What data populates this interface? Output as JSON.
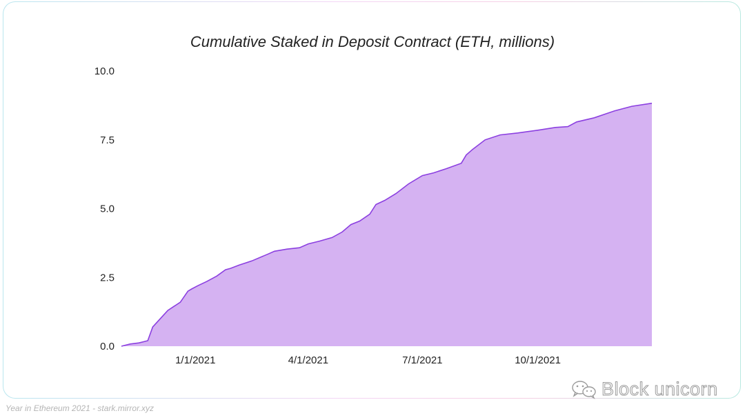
{
  "chart_data": {
    "type": "area",
    "title": "Cumulative Staked in Deposit Contract (ETH, millions)",
    "xlabel": "",
    "ylabel": "",
    "ylim": [
      0,
      10
    ],
    "yticks": [
      "0.0",
      "2.5",
      "5.0",
      "7.5",
      "10.0"
    ],
    "xticks": [
      "1/1/2021",
      "4/1/2021",
      "7/1/2021",
      "10/1/2021"
    ],
    "xlim": [
      "2020-11-03",
      "2021-12-31"
    ],
    "grid": false,
    "legend": "none",
    "fill_color": "#d5b2f2",
    "line_color": "#8b3fe0",
    "x": [
      "2020-11-03",
      "2020-11-10",
      "2020-11-17",
      "2020-11-24",
      "2020-11-28",
      "2020-12-01",
      "2020-12-05",
      "2020-12-10",
      "2020-12-15",
      "2020-12-20",
      "2020-12-26",
      "2020-12-29",
      "2021-01-03",
      "2021-01-10",
      "2021-01-18",
      "2021-01-25",
      "2021-01-29",
      "2021-02-05",
      "2021-02-15",
      "2021-02-28",
      "2021-03-05",
      "2021-03-15",
      "2021-03-25",
      "2021-04-01",
      "2021-04-10",
      "2021-04-20",
      "2021-04-28",
      "2021-05-05",
      "2021-05-12",
      "2021-05-20",
      "2021-05-25",
      "2021-06-01",
      "2021-06-10",
      "2021-06-20",
      "2021-07-01",
      "2021-07-10",
      "2021-07-20",
      "2021-08-01",
      "2021-08-05",
      "2021-08-10",
      "2021-08-20",
      "2021-09-01",
      "2021-09-15",
      "2021-10-01",
      "2021-10-15",
      "2021-10-25",
      "2021-11-01",
      "2021-11-15",
      "2021-12-01",
      "2021-12-15",
      "2021-12-31"
    ],
    "values": [
      0.0,
      0.08,
      0.12,
      0.2,
      0.7,
      0.85,
      1.05,
      1.3,
      1.45,
      1.6,
      2.0,
      2.08,
      2.2,
      2.35,
      2.55,
      2.78,
      2.83,
      2.95,
      3.1,
      3.35,
      3.45,
      3.53,
      3.58,
      3.72,
      3.82,
      3.95,
      4.15,
      4.42,
      4.55,
      4.8,
      5.15,
      5.3,
      5.55,
      5.9,
      6.2,
      6.3,
      6.45,
      6.65,
      6.95,
      7.15,
      7.5,
      7.68,
      7.75,
      7.85,
      7.95,
      7.98,
      8.15,
      8.3,
      8.55,
      8.72,
      8.83
    ]
  },
  "footer": {
    "caption": "Year in Ethereum 2021 - stark.mirror.xyz"
  },
  "watermark": {
    "text": "Block unicorn",
    "icon": "wechat-icon"
  }
}
